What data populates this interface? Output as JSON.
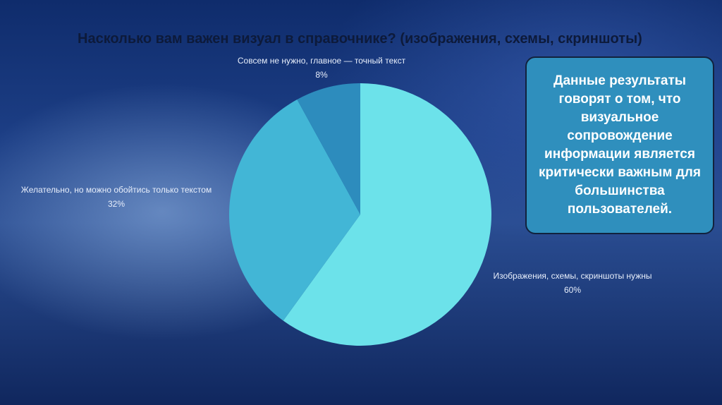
{
  "slide": {
    "title": "Насколько вам важен визуал в справочнике? (изображения, схемы, скриншоты)",
    "callout": "Данные результаты говорят о том, что визуальное сопровождение информации является критически важным для большинства пользователей."
  },
  "chart_data": {
    "type": "pie",
    "title": "",
    "categories": [
      "Изображения, схемы, скриншоты нужны",
      "Желательно, но можно обойтись только текстом",
      "Совсем не нужно, главное — точный текст"
    ],
    "values": [
      60,
      32,
      8
    ],
    "value_labels": [
      "60%",
      "32%",
      "8%"
    ],
    "colors": [
      "#6ce2ea",
      "#42b6d6",
      "#2d8cbd"
    ],
    "start": "12 o'clock",
    "direction": "clockwise",
    "legend": "none"
  }
}
